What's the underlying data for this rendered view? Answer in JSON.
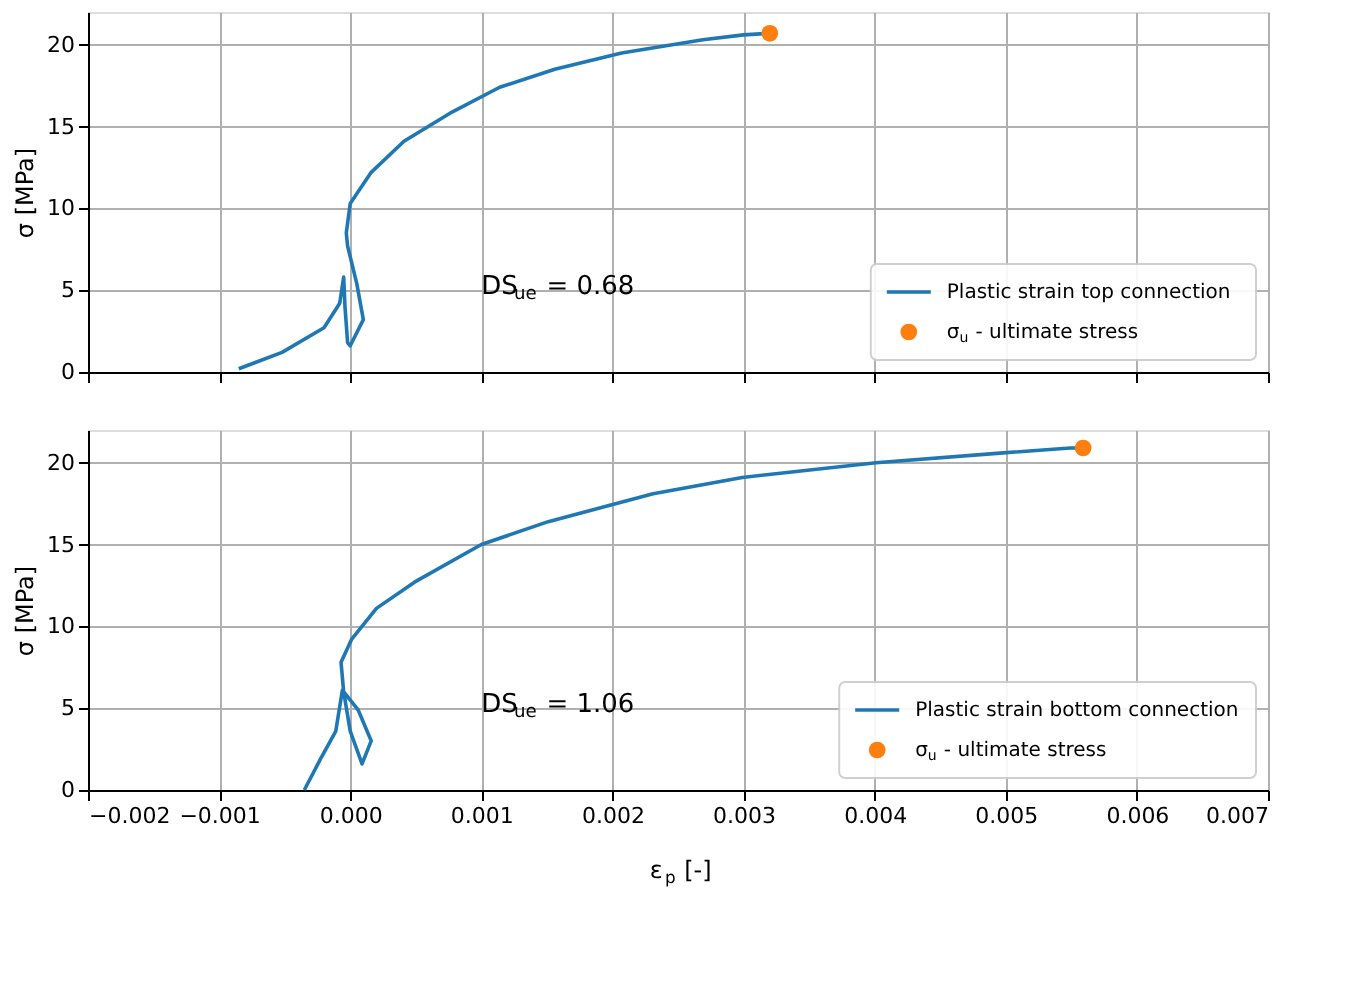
{
  "chart_data": [
    {
      "type": "line",
      "ylabel": "σ [MPa]",
      "xlim": [
        -0.002,
        0.007
      ],
      "ylim": [
        0,
        22
      ],
      "xticks": [
        -0.002,
        -0.001,
        0,
        0.001,
        0.002,
        0.003,
        0.004,
        0.005,
        0.006,
        0.007
      ],
      "yticks": [
        0,
        5,
        10,
        15,
        20
      ],
      "grid": true,
      "legend": "bottom right",
      "tick_labels": "y",
      "annotations": [
        "DS$_{ue}$ = 0.68"
      ],
      "series": [
        {
          "name": "Plastic strain top connection",
          "color": "#1f77b4",
          "x": [
            -0.00085,
            -0.00052,
            -0.0002,
            -8e-05,
            -5e-05,
            -4e-05,
            -2e-05,
            0.0,
            0.0001,
            5e-05,
            -2e-05,
            -3e-05,
            0.0,
            0.00016,
            0.00041,
            0.00078,
            0.00114,
            0.00156,
            0.00207,
            0.00269,
            0.003,
            0.0032
          ],
          "values": [
            0.2,
            1.2,
            2.7,
            4.2,
            5.8,
            4.0,
            1.8,
            1.6,
            3.2,
            5.4,
            7.7,
            8.5,
            10.3,
            12.2,
            14.1,
            15.9,
            17.4,
            18.5,
            19.5,
            20.3,
            20.6,
            20.7
          ]
        },
        {
          "name": "σ$_{u}$ - ultimate stress",
          "color": "#ff7f0e",
          "type": "scatter",
          "marker": "circle",
          "x": [
            0.0032
          ],
          "values": [
            20.7
          ]
        }
      ]
    },
    {
      "type": "line",
      "ylabel": "σ [MPa]",
      "xlabel": "ε$_{p}$ [-]",
      "xlim": [
        -0.002,
        0.007
      ],
      "ylim": [
        0,
        22
      ],
      "xticks": [
        {
          "value": -0.002,
          "label": "−0.002"
        },
        {
          "value": -0.001,
          "label": "−0.001"
        },
        {
          "value": 0.0,
          "label": "0.000"
        },
        {
          "value": 0.001,
          "label": "0.001"
        },
        {
          "value": 0.002,
          "label": "0.002"
        },
        {
          "value": 0.003,
          "label": "0.003"
        },
        {
          "value": 0.004,
          "label": "0.004"
        },
        {
          "value": 0.005,
          "label": "0.005"
        },
        {
          "value": 0.006,
          "label": "0.006"
        },
        {
          "value": 0.007,
          "label": "0.007"
        }
      ],
      "yticks": [
        0,
        5,
        10,
        15,
        20
      ],
      "grid": true,
      "legend": "bottom right",
      "annotations": [
        "DS$_{ue}$ = 1.06"
      ],
      "series": [
        {
          "name": "Plastic strain bottom connection",
          "color": "#1f77b4",
          "x": [
            -0.00035,
            -0.00022,
            -0.00011,
            -6e-05,
            6e-05,
            0.00016,
            9e-05,
            0.0,
            -5e-05,
            -7e-05,
            1e-05,
            0.0002,
            0.00049,
            0.001,
            0.00151,
            0.00231,
            0.00299,
            0.00401,
            0.00498,
            0.00549,
            0.00559
          ],
          "values": [
            0.0,
            2.0,
            3.6,
            6.1,
            4.9,
            3.0,
            1.6,
            3.6,
            6.0,
            7.8,
            9.2,
            11.1,
            12.7,
            15.0,
            16.4,
            18.1,
            19.1,
            20.0,
            20.6,
            20.9,
            20.9
          ]
        },
        {
          "name": "σ$_{u}$ - ultimate stress",
          "color": "#ff7f0e",
          "type": "scatter",
          "marker": "circle",
          "x": [
            0.00559
          ],
          "values": [
            20.9
          ]
        }
      ]
    }
  ]
}
